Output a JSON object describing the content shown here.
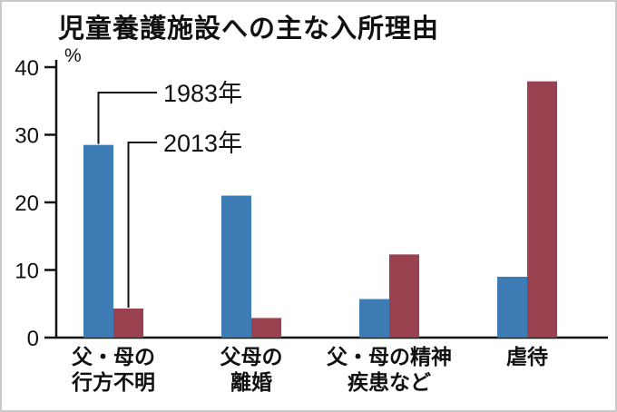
{
  "chart_data": {
    "type": "bar",
    "title": "児童養護施設への主な入所理由",
    "unit_label": "%",
    "categories": [
      [
        "父・母の",
        "行方不明"
      ],
      [
        "父母の",
        "離婚"
      ],
      [
        "父・母の精神",
        "疾患など"
      ],
      [
        "虐待"
      ]
    ],
    "series": [
      {
        "name": "1983年",
        "color": "#3e7cb5",
        "values": [
          28.5,
          21.0,
          5.7,
          9.0
        ]
      },
      {
        "name": "2013年",
        "color": "#9a4150",
        "values": [
          4.3,
          2.9,
          12.3,
          37.9
        ]
      }
    ],
    "ylim": [
      0,
      40
    ],
    "yticks": [
      0,
      10,
      20,
      30,
      40
    ],
    "grid": "off",
    "legend_position": "callout-lines-to-first-group"
  }
}
